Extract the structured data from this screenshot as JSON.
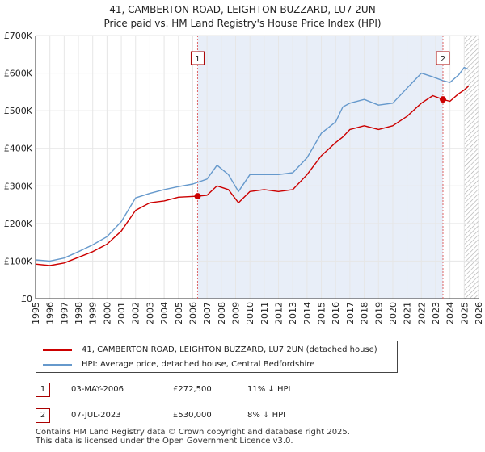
{
  "title_line1": "41, CAMBERTON ROAD, LEIGHTON BUZZARD, LU7 2UN",
  "title_line2": "Price paid vs. HM Land Registry's House Price Index (HPI)",
  "chart_data": {
    "type": "line",
    "title": "41, CAMBERTON ROAD, LEIGHTON BUZZARD, LU7 2UN",
    "subtitle": "Price paid vs. HM Land Registry's House Price Index (HPI)",
    "xlabel": "",
    "ylabel": "",
    "xlim": [
      1995,
      2026
    ],
    "ylim": [
      0,
      700000
    ],
    "xticks": [
      "1995",
      "1996",
      "1997",
      "1998",
      "1999",
      "2000",
      "2001",
      "2002",
      "2003",
      "2004",
      "2005",
      "2006",
      "2007",
      "2008",
      "2009",
      "2010",
      "2011",
      "2012",
      "2013",
      "2014",
      "2015",
      "2016",
      "2017",
      "2018",
      "2019",
      "2020",
      "2021",
      "2022",
      "2023",
      "2024",
      "2025",
      "2026"
    ],
    "yticks": [
      0,
      100000,
      200000,
      300000,
      400000,
      500000,
      600000,
      700000
    ],
    "ytick_labels": [
      "£0",
      "£100K",
      "£200K",
      "£300K",
      "£400K",
      "£500K",
      "£600K",
      "£700K"
    ],
    "grid": true,
    "colors": {
      "property": "#cc0000",
      "hpi": "#6699cc",
      "shade": "#e8eef8",
      "marker": "#cc0000",
      "vline": "#dd6666"
    },
    "shaded_range": [
      2006.34,
      2023.51
    ],
    "hatched_from": 2025.0,
    "series": [
      {
        "name": "41, CAMBERTON ROAD, LEIGHTON BUZZARD, LU7 2UN (detached house)",
        "color": "#cc0000",
        "x": [
          1995,
          1996,
          1997,
          1998,
          1999,
          2000,
          2001,
          2002,
          2003,
          2004,
          2005,
          2006.34,
          2007,
          2007.7,
          2008.5,
          2009.2,
          2010,
          2011,
          2012,
          2013,
          2014,
          2015,
          2016,
          2016.5,
          2017,
          2018,
          2019,
          2020,
          2021,
          2022,
          2022.8,
          2023.51,
          2024,
          2024.6,
          2025,
          2025.3
        ],
        "values": [
          92000,
          88000,
          95000,
          110000,
          125000,
          145000,
          180000,
          235000,
          255000,
          260000,
          270000,
          272500,
          275000,
          300000,
          290000,
          255000,
          285000,
          290000,
          285000,
          290000,
          330000,
          380000,
          415000,
          430000,
          450000,
          460000,
          450000,
          460000,
          485000,
          520000,
          540000,
          530000,
          525000,
          545000,
          555000,
          565000
        ]
      },
      {
        "name": "HPI: Average price, detached house, Central Bedfordshire",
        "color": "#6699cc",
        "x": [
          1995,
          1996,
          1997,
          1998,
          1999,
          2000,
          2001,
          2002,
          2003,
          2004,
          2005,
          2006,
          2007,
          2007.7,
          2008.5,
          2009.2,
          2010,
          2011,
          2012,
          2013,
          2014,
          2015,
          2016,
          2016.5,
          2017,
          2018,
          2019,
          2020,
          2021,
          2022,
          2022.8,
          2023.5,
          2024,
          2024.6,
          2025,
          2025.3
        ],
        "values": [
          103000,
          100000,
          108000,
          125000,
          143000,
          165000,
          205000,
          268000,
          280000,
          290000,
          298000,
          305000,
          318000,
          355000,
          330000,
          285000,
          330000,
          330000,
          330000,
          335000,
          375000,
          440000,
          470000,
          510000,
          520000,
          530000,
          515000,
          520000,
          560000,
          600000,
          590000,
          580000,
          575000,
          595000,
          615000,
          610000
        ]
      }
    ],
    "sales": [
      {
        "marker": "1",
        "x": 2006.34,
        "value": 272500,
        "date": "03-MAY-2006",
        "price": "£272,500",
        "hpi_diff": "11% ↓ HPI"
      },
      {
        "marker": "2",
        "x": 2023.51,
        "value": 530000,
        "date": "07-JUL-2023",
        "price": "£530,000",
        "hpi_diff": "8% ↓ HPI"
      }
    ]
  },
  "legend": {
    "property_label": "41, CAMBERTON ROAD, LEIGHTON BUZZARD, LU7 2UN (detached house)",
    "hpi_label": "HPI: Average price, detached house, Central Bedfordshire"
  },
  "footer": {
    "line1": "Contains HM Land Registry data © Crown copyright and database right 2025.",
    "line2": "This data is licensed under the Open Government Licence v3.0."
  }
}
